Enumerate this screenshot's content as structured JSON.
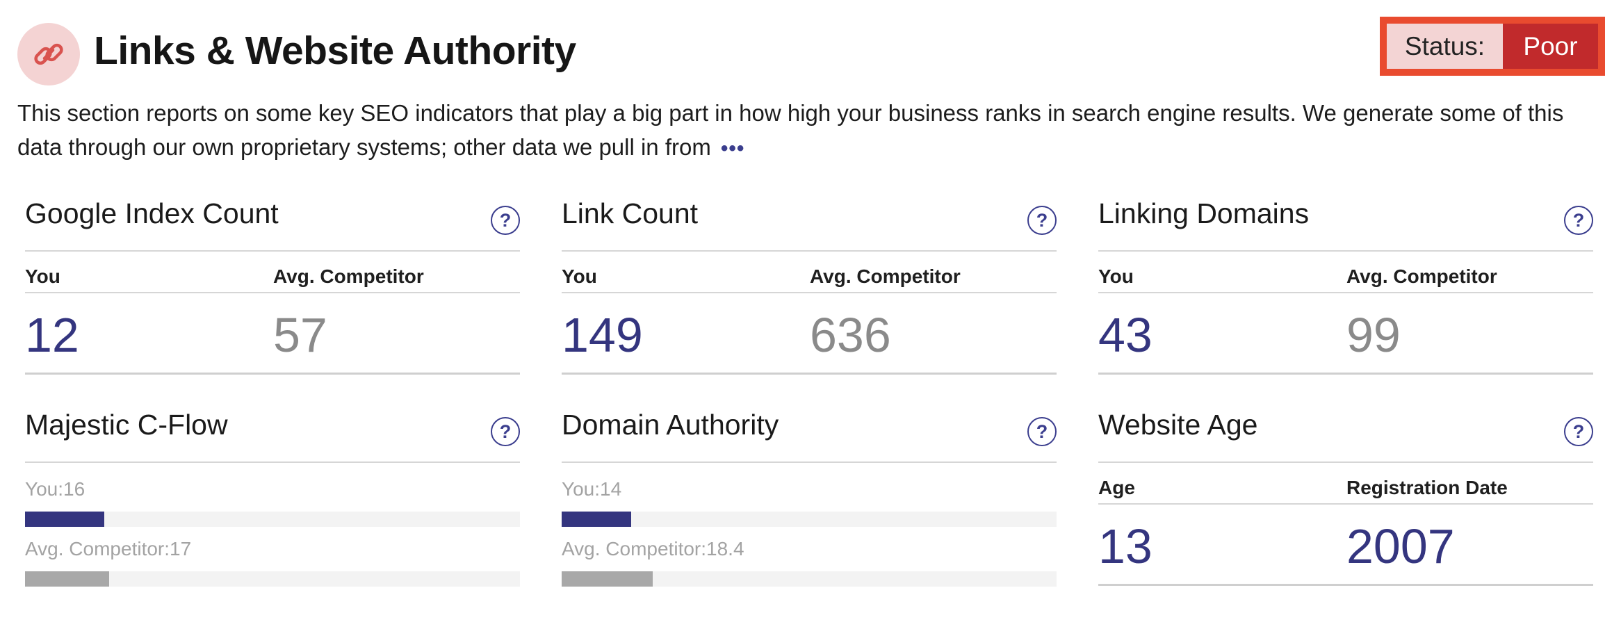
{
  "header": {
    "icon": "link-chain-icon",
    "title": "Links & Website Authority",
    "status_label": "Status:",
    "status_value": "Poor"
  },
  "description": {
    "text": "This section reports on some key SEO indicators that play a big part in how high your business ranks in search engine results. We generate some of this data through our own proprietary systems; other data we pull in from",
    "more": "•••"
  },
  "colors": {
    "accent": "#34357f",
    "status_poor": "#c12a2c",
    "status_border": "#e94b2f",
    "competitor_gray": "#8a8a8a"
  },
  "cards": {
    "google_index": {
      "title": "Google Index Count",
      "col_you": "You",
      "col_comp": "Avg. Competitor",
      "you": "12",
      "comp": "57"
    },
    "link_count": {
      "title": "Link Count",
      "col_you": "You",
      "col_comp": "Avg. Competitor",
      "you": "149",
      "comp": "636"
    },
    "linking_domains": {
      "title": "Linking Domains",
      "col_you": "You",
      "col_comp": "Avg. Competitor",
      "you": "43",
      "comp": "99"
    },
    "majestic": {
      "title": "Majestic C-Flow",
      "you_label": "You:16",
      "comp_label": "Avg. Competitor:17",
      "you_value": 16,
      "comp_value": 17,
      "scale_max": 100
    },
    "domain_authority": {
      "title": "Domain Authority",
      "you_label": "You:14",
      "comp_label": "Avg. Competitor:18.4",
      "you_value": 14,
      "comp_value": 18.4,
      "scale_max": 100
    },
    "website_age": {
      "title": "Website Age",
      "col_left": "Age",
      "col_right": "Registration Date",
      "age": "13",
      "reg_date": "2007"
    }
  }
}
